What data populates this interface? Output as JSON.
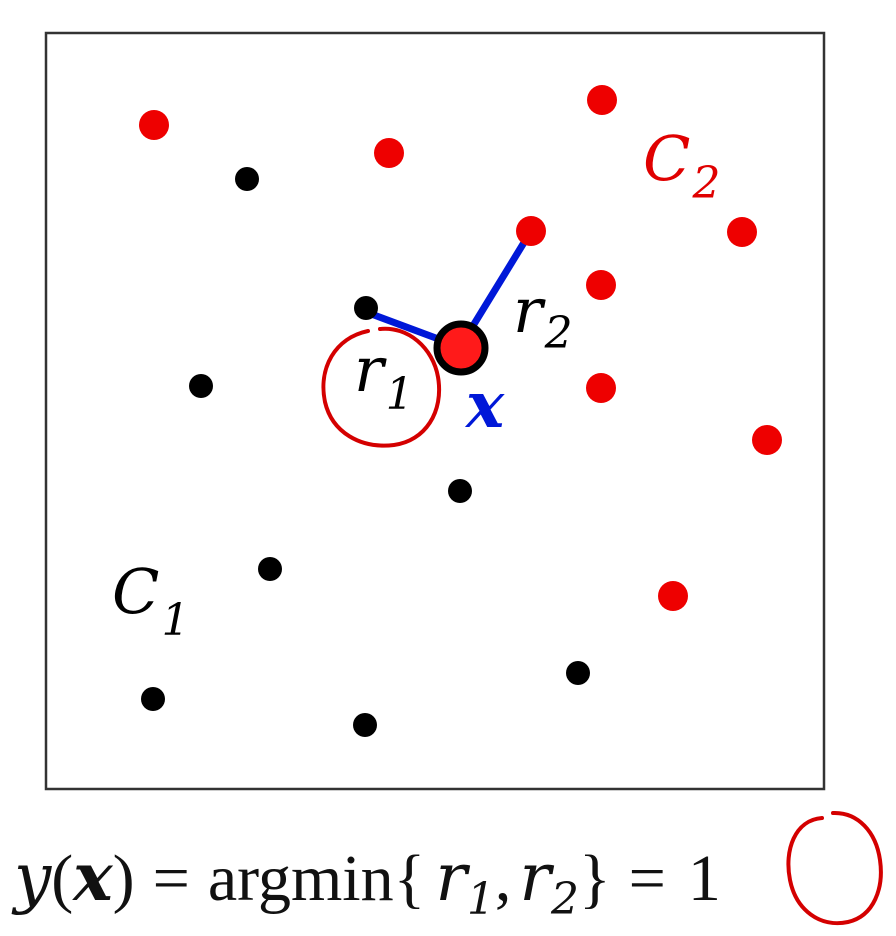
{
  "diagram": {
    "class1": {
      "label_main": "C",
      "label_sub": "1",
      "color": "#000000"
    },
    "class2": {
      "label_main": "C",
      "label_sub": "2",
      "color": "#e00000"
    },
    "query": {
      "label": "x",
      "color": "#ff0000",
      "outline_color": "#000000"
    },
    "distances": {
      "r1_main": "r",
      "r1_sub": "1",
      "r2_main": "r",
      "r2_sub": "2",
      "line_color": "#0018d8"
    },
    "highlight_color": "#d40000"
  },
  "formula": {
    "lhs_y": "y",
    "lhs_open": "(",
    "lhs_x": "x",
    "lhs_close": ")",
    "equals1": "=",
    "func": "argmin",
    "brace_open": "{",
    "r1_main": "r",
    "r1_sub": "1",
    "comma": ",",
    "r2_main": "r",
    "r2_sub": "2",
    "brace_close": "}",
    "equals2": "=",
    "result": "1"
  }
}
